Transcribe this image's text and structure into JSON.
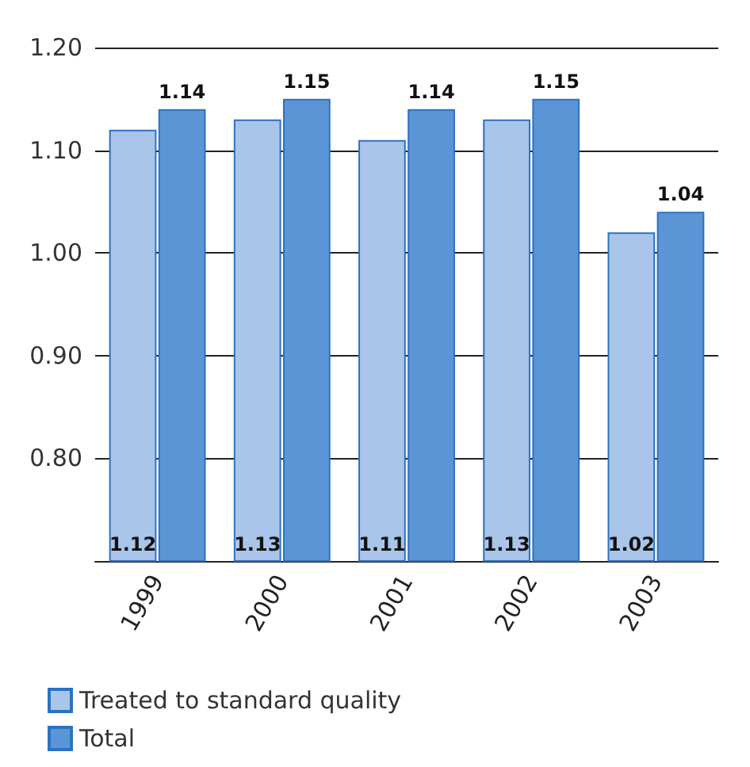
{
  "chart_data": {
    "type": "bar",
    "categories": [
      "1999",
      "2000",
      "2001",
      "2002",
      "2003"
    ],
    "series": [
      {
        "name": "Treated to standard quality",
        "color": "#a9c5ea",
        "values": [
          1.12,
          1.13,
          1.11,
          1.13,
          1.02
        ]
      },
      {
        "name": "Total",
        "color": "#5b95d6",
        "values": [
          1.14,
          1.15,
          1.14,
          1.15,
          1.04
        ]
      }
    ],
    "ylim": [
      0.7,
      1.2
    ],
    "yticks": [
      {
        "value": 0.8,
        "label": "0.80"
      },
      {
        "value": 0.9,
        "label": "0.90"
      },
      {
        "value": 1.0,
        "label": "1.00"
      },
      {
        "value": 1.1,
        "label": "1.10"
      },
      {
        "value": 1.2,
        "label": "1.20"
      }
    ],
    "grid": "y",
    "legend": "bottom left",
    "data_labels": true
  }
}
